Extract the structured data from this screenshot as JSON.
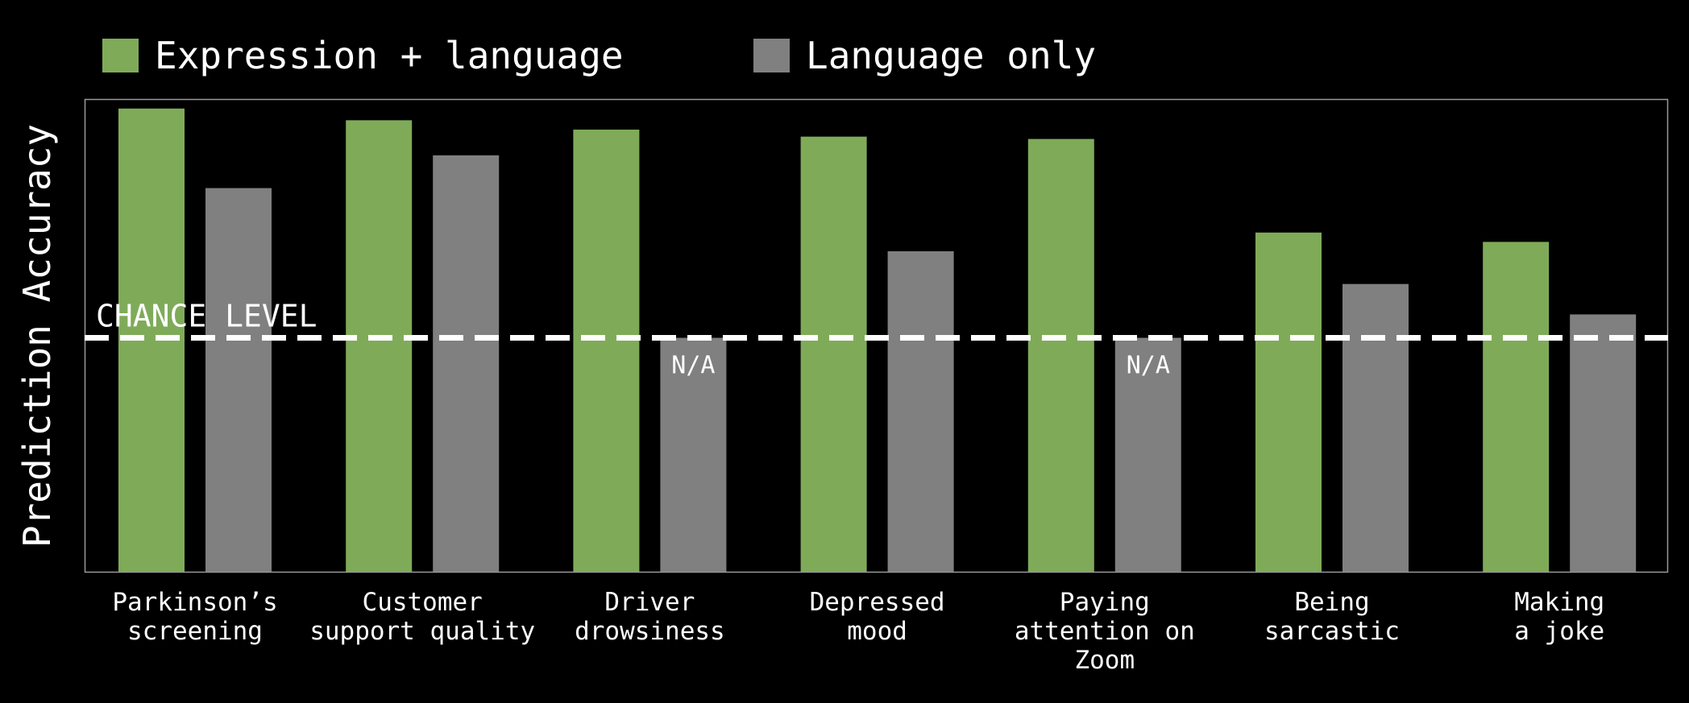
{
  "chart_data": {
    "type": "bar",
    "ylabel": "Prediction Accuracy",
    "categories": [
      [
        "Parkinson’s",
        "screening"
      ],
      [
        "Customer",
        "support quality"
      ],
      [
        "Driver",
        "drowsiness"
      ],
      [
        "Depressed",
        "mood"
      ],
      [
        "Paying",
        "attention on",
        "Zoom"
      ],
      [
        "Being",
        "sarcastic"
      ],
      [
        "Making",
        "a joke"
      ]
    ],
    "series": [
      {
        "name": "Expression + language",
        "color": "#7fab59",
        "values": [
          0.99,
          0.965,
          0.945,
          0.93,
          0.925,
          0.725,
          0.705
        ],
        "value_labels": [
          null,
          null,
          null,
          null,
          null,
          null,
          null
        ]
      },
      {
        "name": "Language only",
        "color": "#808080",
        "values": [
          0.82,
          0.89,
          0.5,
          0.685,
          0.5,
          0.615,
          0.55
        ],
        "value_labels": [
          null,
          null,
          "N/A",
          null,
          "N/A",
          null,
          null
        ]
      }
    ],
    "reference_line": {
      "label": "CHANCE LEVEL",
      "value": 0.5
    },
    "ylim": [
      0,
      1
    ],
    "grid": false,
    "legend_position": "top-left"
  }
}
